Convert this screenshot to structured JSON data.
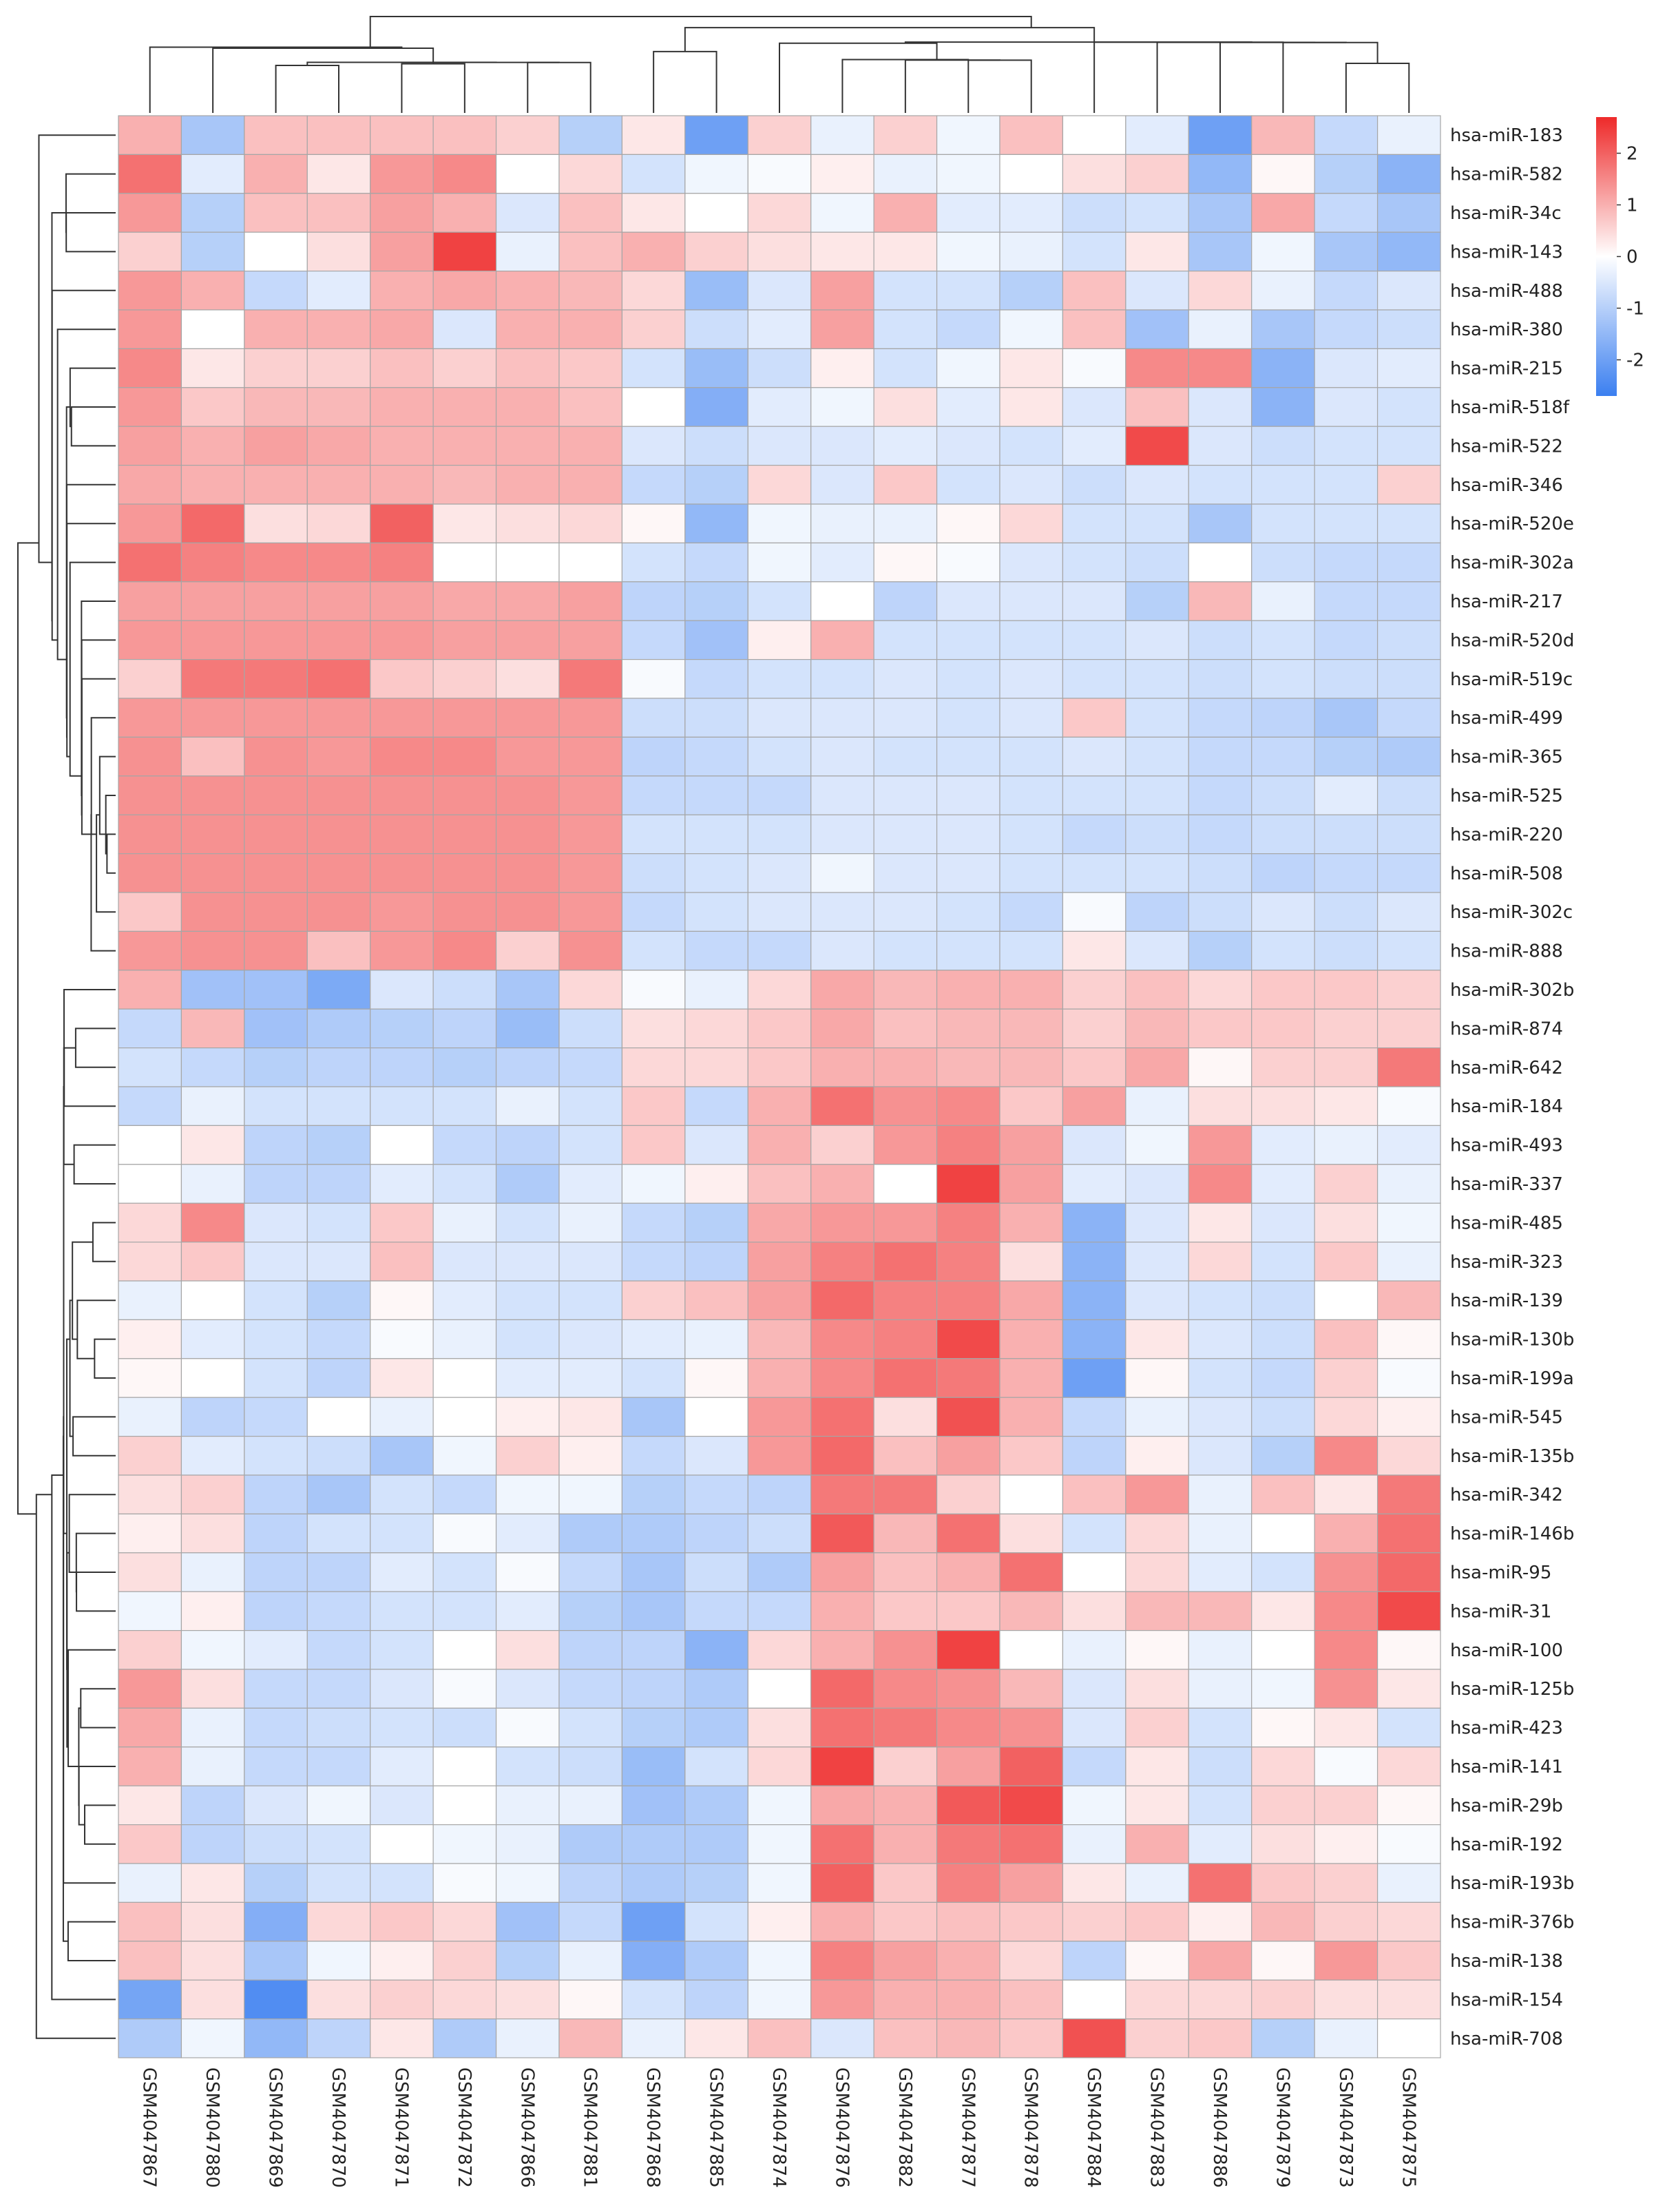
{
  "chart_data": {
    "type": "heatmap",
    "title": "",
    "rows": [
      "hsa-miR-183",
      "hsa-miR-582",
      "hsa-miR-34c",
      "hsa-miR-143",
      "hsa-miR-488",
      "hsa-miR-380",
      "hsa-miR-215",
      "hsa-miR-518f",
      "hsa-miR-522",
      "hsa-miR-346",
      "hsa-miR-520e",
      "hsa-miR-302a",
      "hsa-miR-217",
      "hsa-miR-520d",
      "hsa-miR-519c",
      "hsa-miR-499",
      "hsa-miR-365",
      "hsa-miR-525",
      "hsa-miR-220",
      "hsa-miR-508",
      "hsa-miR-302c",
      "hsa-miR-888",
      "hsa-miR-302b",
      "hsa-miR-874",
      "hsa-miR-642",
      "hsa-miR-184",
      "hsa-miR-493",
      "hsa-miR-337",
      "hsa-miR-485",
      "hsa-miR-323",
      "hsa-miR-139",
      "hsa-miR-130b",
      "hsa-miR-199a",
      "hsa-miR-545",
      "hsa-miR-135b",
      "hsa-miR-342",
      "hsa-miR-146b",
      "hsa-miR-95",
      "hsa-miR-31",
      "hsa-miR-100",
      "hsa-miR-125b",
      "hsa-miR-423",
      "hsa-miR-141",
      "hsa-miR-29b",
      "hsa-miR-192",
      "hsa-miR-193b",
      "hsa-miR-376b",
      "hsa-miR-138",
      "hsa-miR-154",
      "hsa-miR-708"
    ],
    "columns": [
      "GSM4047867",
      "GSM4047880",
      "GSM4047869",
      "GSM4047870",
      "GSM4047871",
      "GSM4047872",
      "GSM4047866",
      "GSM4047881",
      "GSM4047868",
      "GSM4047885",
      "GSM4047874",
      "GSM4047876",
      "GSM4047882",
      "GSM4047877",
      "GSM4047878",
      "GSM4047884",
      "GSM4047883",
      "GSM4047886",
      "GSM4047879",
      "GSM4047873",
      "GSM4047875"
    ],
    "values": [
      [
        1.0,
        -1.2,
        0.8,
        0.8,
        0.8,
        0.8,
        0.6,
        -1.0,
        0.3,
        -2.0,
        0.6,
        -0.3,
        0.6,
        -0.2,
        0.8,
        0.0,
        -0.4,
        -2.0,
        0.9,
        -0.8,
        -0.3
      ],
      [
        1.8,
        -0.4,
        1.0,
        0.3,
        1.3,
        1.5,
        0.0,
        0.5,
        -0.6,
        -0.2,
        -0.1,
        0.2,
        -0.3,
        -0.2,
        0.0,
        0.4,
        0.6,
        -1.5,
        0.1,
        -1.0,
        -1.6
      ],
      [
        1.3,
        -1.0,
        0.8,
        0.8,
        1.2,
        1.0,
        -0.5,
        0.8,
        0.3,
        0.0,
        0.5,
        -0.2,
        1.0,
        -0.4,
        -0.4,
        -0.7,
        -0.6,
        -1.2,
        1.1,
        -0.8,
        -1.2
      ],
      [
        0.6,
        -1.0,
        0.0,
        0.4,
        1.2,
        2.4,
        -0.3,
        0.8,
        1.0,
        0.6,
        0.4,
        0.3,
        0.3,
        -0.2,
        -0.3,
        -0.6,
        0.3,
        -1.2,
        -0.2,
        -1.2,
        -1.5
      ],
      [
        1.3,
        1.0,
        -0.8,
        -0.4,
        1.0,
        1.1,
        1.0,
        0.9,
        0.5,
        -1.4,
        -0.5,
        1.2,
        -0.6,
        -0.6,
        -1.0,
        0.8,
        -0.5,
        0.5,
        -0.3,
        -0.8,
        -0.5
      ],
      [
        1.3,
        0.0,
        1.0,
        1.0,
        1.1,
        -0.5,
        1.0,
        1.0,
        0.6,
        -0.7,
        -0.4,
        1.2,
        -0.6,
        -0.8,
        -0.2,
        0.8,
        -1.3,
        -0.3,
        -1.2,
        -0.8,
        -0.7
      ],
      [
        1.5,
        0.3,
        0.6,
        0.6,
        0.8,
        0.6,
        0.8,
        0.7,
        -0.6,
        -1.4,
        -0.7,
        0.2,
        -0.6,
        -0.2,
        0.3,
        -0.1,
        1.5,
        1.5,
        -1.6,
        -0.5,
        -0.4
      ],
      [
        1.3,
        0.7,
        0.9,
        0.9,
        1.0,
        1.0,
        1.0,
        0.8,
        0.0,
        -1.7,
        -0.4,
        -0.2,
        0.4,
        -0.4,
        0.3,
        -0.5,
        0.8,
        -0.5,
        -1.6,
        -0.5,
        -0.6
      ],
      [
        1.2,
        1.0,
        1.2,
        1.1,
        1.0,
        1.0,
        1.0,
        1.0,
        -0.5,
        -0.7,
        -0.5,
        -0.5,
        -0.4,
        -0.5,
        -0.6,
        -0.4,
        2.3,
        -0.5,
        -0.7,
        -0.6,
        -0.6
      ],
      [
        1.1,
        1.0,
        1.0,
        1.0,
        1.0,
        0.9,
        1.0,
        1.0,
        -0.8,
        -1.0,
        0.5,
        -0.5,
        0.7,
        -0.6,
        -0.5,
        -0.7,
        -0.5,
        -0.6,
        -0.6,
        -0.6,
        0.6
      ],
      [
        1.3,
        1.9,
        0.4,
        0.5,
        2.0,
        0.3,
        0.4,
        0.5,
        0.1,
        -1.5,
        -0.2,
        -0.3,
        -0.3,
        0.1,
        0.5,
        -0.6,
        -0.6,
        -1.2,
        -0.6,
        -0.6,
        -0.6
      ],
      [
        1.8,
        1.6,
        1.5,
        1.5,
        1.6,
        0.0,
        0.0,
        0.0,
        -0.6,
        -0.8,
        -0.2,
        -0.4,
        0.1,
        -0.1,
        -0.5,
        -0.6,
        -0.7,
        0.0,
        -0.7,
        -0.8,
        -0.8
      ],
      [
        1.2,
        1.2,
        1.2,
        1.2,
        1.2,
        1.1,
        1.1,
        1.2,
        -0.9,
        -1.0,
        -0.6,
        0.0,
        -0.9,
        -0.5,
        -0.5,
        -0.5,
        -1.0,
        0.9,
        -0.3,
        -0.8,
        -0.8
      ],
      [
        1.3,
        1.3,
        1.3,
        1.3,
        1.3,
        1.2,
        1.2,
        1.2,
        -0.8,
        -1.3,
        0.2,
        1.0,
        -0.6,
        -0.6,
        -0.6,
        -0.6,
        -0.5,
        -0.7,
        -0.6,
        -0.8,
        -0.7
      ],
      [
        0.6,
        1.7,
        1.7,
        1.8,
        0.7,
        0.6,
        0.4,
        1.7,
        -0.1,
        -0.8,
        -0.6,
        -0.6,
        -0.5,
        -0.6,
        -0.5,
        -0.6,
        -0.6,
        -0.7,
        -0.6,
        -0.7,
        -0.7
      ],
      [
        1.3,
        1.3,
        1.3,
        1.3,
        1.3,
        1.3,
        1.3,
        1.3,
        -0.7,
        -0.7,
        -0.5,
        -0.5,
        -0.5,
        -0.6,
        -0.5,
        0.7,
        -0.6,
        -0.8,
        -0.9,
        -1.2,
        -0.8
      ],
      [
        1.4,
        0.8,
        1.4,
        1.3,
        1.5,
        1.5,
        1.3,
        1.3,
        -0.9,
        -0.8,
        -0.6,
        -0.5,
        -0.6,
        -0.6,
        -0.6,
        -0.5,
        -0.6,
        -0.8,
        -0.8,
        -1.0,
        -1.1
      ],
      [
        1.4,
        1.4,
        1.4,
        1.4,
        1.4,
        1.4,
        1.4,
        1.3,
        -0.8,
        -0.8,
        -0.8,
        -0.5,
        -0.5,
        -0.5,
        -0.6,
        -0.6,
        -0.6,
        -0.8,
        -0.7,
        -0.4,
        -0.7
      ],
      [
        1.4,
        1.4,
        1.4,
        1.4,
        1.4,
        1.4,
        1.4,
        1.3,
        -0.6,
        -0.6,
        -0.6,
        -0.5,
        -0.5,
        -0.5,
        -0.6,
        -0.8,
        -0.7,
        -0.8,
        -0.7,
        -0.7,
        -0.7
      ],
      [
        1.4,
        1.4,
        1.4,
        1.4,
        1.4,
        1.4,
        1.4,
        1.3,
        -0.7,
        -0.6,
        -0.5,
        -0.2,
        -0.5,
        -0.5,
        -0.6,
        -0.6,
        -0.6,
        -0.7,
        -0.9,
        -0.8,
        -0.8
      ],
      [
        0.7,
        1.4,
        1.4,
        1.4,
        1.3,
        1.4,
        1.4,
        1.3,
        -0.8,
        -0.6,
        -0.5,
        -0.5,
        -0.5,
        -0.6,
        -0.8,
        -0.1,
        -0.9,
        -0.7,
        -0.5,
        -0.7,
        -0.5
      ],
      [
        1.3,
        1.4,
        1.4,
        0.8,
        1.3,
        1.5,
        0.6,
        1.4,
        -0.6,
        -0.8,
        -0.8,
        -0.5,
        -0.6,
        -0.6,
        -0.6,
        0.3,
        -0.5,
        -1.0,
        -0.6,
        -0.7,
        -0.6
      ],
      [
        1.0,
        -1.3,
        -1.3,
        -1.8,
        -0.5,
        -0.7,
        -1.2,
        0.5,
        -0.1,
        -0.3,
        0.5,
        1.1,
        0.9,
        1.0,
        1.0,
        0.6,
        0.8,
        0.5,
        0.7,
        0.7,
        0.6
      ],
      [
        -0.8,
        0.9,
        -1.3,
        -1.1,
        -1.0,
        -0.9,
        -1.4,
        -0.7,
        0.4,
        0.5,
        0.7,
        1.1,
        0.8,
        0.9,
        0.9,
        0.6,
        0.9,
        0.7,
        0.7,
        0.6,
        0.6
      ],
      [
        -0.6,
        -0.8,
        -1.0,
        -0.9,
        -0.9,
        -1.0,
        -0.9,
        -0.8,
        0.5,
        0.5,
        0.7,
        1.0,
        1.0,
        0.9,
        0.9,
        0.7,
        1.1,
        0.1,
        0.6,
        0.6,
        1.7
      ],
      [
        -0.8,
        -0.3,
        -0.6,
        -0.6,
        -0.6,
        -0.6,
        -0.3,
        -0.6,
        0.7,
        -0.8,
        1.0,
        1.8,
        1.4,
        1.5,
        0.7,
        1.2,
        -0.3,
        0.4,
        0.4,
        0.3,
        -0.1
      ],
      [
        0.0,
        0.3,
        -0.9,
        -1.0,
        0.0,
        -0.8,
        -0.9,
        -0.6,
        0.7,
        -0.5,
        1.0,
        0.6,
        1.3,
        1.6,
        1.2,
        -0.5,
        -0.2,
        1.3,
        -0.4,
        -0.3,
        -0.4
      ],
      [
        0.0,
        -0.3,
        -0.9,
        -0.9,
        -0.4,
        -0.6,
        -1.1,
        -0.4,
        -0.2,
        0.2,
        0.8,
        1.0,
        0.0,
        2.4,
        1.2,
        -0.4,
        -0.5,
        1.5,
        -0.4,
        0.6,
        -0.3
      ],
      [
        0.5,
        1.5,
        -0.5,
        -0.6,
        0.7,
        -0.3,
        -0.6,
        -0.3,
        -0.8,
        -1.0,
        1.1,
        1.3,
        1.3,
        1.6,
        1.0,
        -1.6,
        -0.5,
        0.3,
        -0.5,
        0.4,
        -0.2
      ],
      [
        0.5,
        0.7,
        -0.5,
        -0.5,
        0.8,
        -0.5,
        -0.5,
        -0.5,
        -0.8,
        -0.9,
        1.2,
        1.6,
        1.8,
        1.6,
        0.4,
        -1.6,
        -0.5,
        0.5,
        -0.6,
        0.7,
        -0.3
      ],
      [
        -0.3,
        0.0,
        -0.6,
        -1.0,
        0.1,
        -0.4,
        -0.6,
        -0.6,
        0.6,
        0.8,
        1.2,
        1.9,
        1.6,
        1.6,
        1.1,
        -1.6,
        -0.5,
        -0.6,
        -0.7,
        0.0,
        0.9
      ],
      [
        0.2,
        -0.4,
        -0.6,
        -0.8,
        -0.1,
        -0.3,
        -0.6,
        -0.5,
        -0.4,
        -0.3,
        0.9,
        1.5,
        1.6,
        2.3,
        1.0,
        -1.6,
        0.3,
        -0.5,
        -0.7,
        0.8,
        0.1
      ],
      [
        0.1,
        0.0,
        -0.6,
        -0.9,
        0.3,
        0.0,
        -0.4,
        -0.4,
        -0.6,
        0.1,
        1.0,
        1.5,
        1.8,
        1.7,
        1.0,
        -2.0,
        0.1,
        -0.6,
        -0.8,
        0.6,
        -0.1
      ],
      [
        -0.3,
        -0.9,
        -0.8,
        0.0,
        -0.3,
        0.0,
        0.2,
        0.3,
        -1.2,
        0.0,
        1.3,
        1.8,
        0.4,
        2.2,
        1.0,
        -0.8,
        -0.3,
        -0.5,
        -0.7,
        0.5,
        0.2
      ],
      [
        0.6,
        -0.4,
        -0.6,
        -0.7,
        -1.2,
        -0.2,
        0.6,
        0.2,
        -0.8,
        -0.5,
        1.3,
        1.9,
        0.8,
        1.2,
        0.7,
        -0.9,
        0.2,
        -0.5,
        -1.0,
        1.5,
        0.5
      ],
      [
        0.4,
        0.6,
        -0.9,
        -1.2,
        -0.6,
        -0.8,
        -0.2,
        -0.2,
        -1.0,
        -0.8,
        -0.9,
        1.7,
        1.7,
        0.6,
        0.0,
        0.8,
        1.3,
        -0.3,
        0.8,
        0.3,
        1.7
      ],
      [
        0.2,
        0.4,
        -0.9,
        -0.6,
        -0.6,
        -0.1,
        -0.4,
        -1.1,
        -1.1,
        -0.9,
        -0.7,
        2.1,
        0.9,
        1.8,
        0.4,
        -0.6,
        0.5,
        -0.3,
        0.0,
        1.0,
        1.8
      ],
      [
        0.4,
        -0.3,
        -0.9,
        -0.9,
        -0.4,
        -0.6,
        -0.1,
        -0.8,
        -1.2,
        -0.7,
        -1.1,
        1.2,
        0.8,
        1.0,
        1.8,
        0.0,
        0.5,
        -0.4,
        -0.6,
        1.4,
        1.9
      ],
      [
        -0.2,
        0.2,
        -0.9,
        -0.8,
        -0.6,
        -0.6,
        -0.4,
        -1.0,
        -1.2,
        -0.8,
        -0.8,
        1.0,
        0.7,
        0.7,
        0.9,
        0.4,
        0.9,
        0.9,
        0.3,
        1.5,
        2.3
      ],
      [
        0.6,
        -0.2,
        -0.4,
        -0.8,
        -0.6,
        0.0,
        0.4,
        -0.9,
        -0.9,
        -1.6,
        0.5,
        1.0,
        1.4,
        2.4,
        0.0,
        -0.3,
        0.1,
        -0.3,
        0.0,
        1.5,
        0.1
      ],
      [
        1.3,
        0.4,
        -0.8,
        -0.8,
        -0.5,
        -0.1,
        -0.5,
        -0.8,
        -0.9,
        -1.1,
        0.0,
        1.9,
        1.5,
        1.4,
        0.9,
        -0.5,
        0.4,
        -0.3,
        -0.2,
        1.4,
        0.3
      ],
      [
        1.1,
        -0.3,
        -0.8,
        -0.7,
        -0.6,
        -0.7,
        -0.1,
        -0.6,
        -1.0,
        -1.1,
        0.4,
        1.8,
        1.7,
        1.5,
        1.4,
        -0.5,
        0.6,
        -0.6,
        0.1,
        0.3,
        -0.6
      ],
      [
        1.0,
        -0.3,
        -0.8,
        -0.8,
        -0.4,
        0.0,
        -0.6,
        -0.7,
        -1.4,
        -0.6,
        0.5,
        2.4,
        0.6,
        1.2,
        2.0,
        -0.8,
        0.3,
        -0.7,
        0.5,
        -0.1,
        0.5
      ],
      [
        0.3,
        -0.9,
        -0.5,
        -0.2,
        -0.5,
        0.0,
        -0.3,
        -0.3,
        -1.3,
        -1.1,
        -0.2,
        1.1,
        1.0,
        2.1,
        2.3,
        -0.2,
        0.3,
        -0.6,
        0.6,
        0.6,
        0.1
      ],
      [
        0.7,
        -0.9,
        -0.7,
        -0.6,
        0.0,
        -0.2,
        -0.3,
        -1.1,
        -1.1,
        -1.1,
        -0.2,
        1.8,
        1.0,
        1.7,
        1.8,
        -0.3,
        1.0,
        -0.4,
        0.4,
        0.2,
        -0.1
      ],
      [
        -0.3,
        0.3,
        -1.0,
        -0.6,
        -0.6,
        -0.1,
        -0.2,
        -0.9,
        -1.1,
        -1.0,
        -0.2,
        2.0,
        0.7,
        1.6,
        1.2,
        0.3,
        -0.3,
        1.8,
        0.7,
        0.6,
        -0.3
      ],
      [
        0.8,
        0.4,
        -1.7,
        0.5,
        0.7,
        0.5,
        -1.3,
        -0.8,
        -2.0,
        -0.6,
        0.2,
        1.0,
        0.7,
        0.8,
        0.7,
        0.6,
        0.7,
        0.2,
        0.9,
        0.6,
        0.5
      ],
      [
        0.8,
        0.4,
        -1.2,
        -0.2,
        0.2,
        0.6,
        -1.0,
        -0.3,
        -1.7,
        -1.1,
        -0.2,
        1.6,
        1.2,
        1.0,
        0.5,
        -0.9,
        0.1,
        1.1,
        0.1,
        1.3,
        0.7
      ],
      [
        -1.9,
        0.4,
        -2.4,
        0.4,
        0.6,
        0.5,
        0.4,
        0.1,
        -0.6,
        -0.9,
        -0.2,
        1.3,
        1.0,
        1.0,
        0.8,
        0.0,
        0.5,
        0.5,
        0.6,
        0.4,
        0.4
      ],
      [
        -1.1,
        -0.2,
        -1.5,
        -0.9,
        0.3,
        -1.1,
        -0.3,
        0.9,
        -0.3,
        0.3,
        0.8,
        -0.5,
        0.8,
        0.9,
        0.7,
        2.2,
        0.6,
        0.7,
        -1.0,
        -0.3,
        0.0
      ]
    ],
    "colorbar": {
      "min": -2.7,
      "max": 2.7,
      "ticks": [
        2,
        1,
        0,
        -1,
        -2
      ],
      "low_color": "#3b7ff0",
      "mid_color": "#ffffff",
      "high_color": "#ee2a2a"
    },
    "row_dendrogram": true,
    "col_dendrogram": true
  }
}
